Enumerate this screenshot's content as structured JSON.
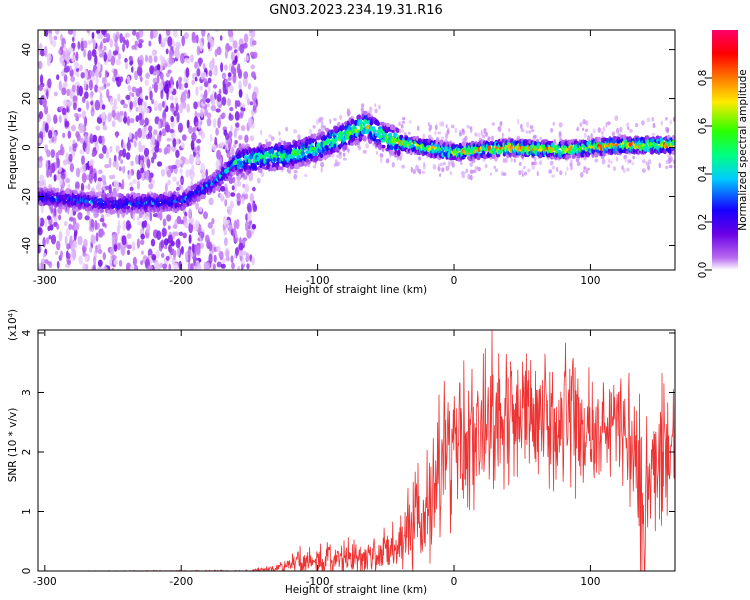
{
  "title": "GN03.2023.234.19.31.R16",
  "chart_data": [
    {
      "type": "heatmap",
      "xlabel": "Height of straight line (km)",
      "ylabel": "Frequency (Hz)",
      "xlim": [
        -305,
        162
      ],
      "ylim": [
        -50,
        48
      ],
      "x_ticks": [
        -300,
        -200,
        -100,
        0,
        100
      ],
      "y_ticks": [
        -40,
        -20,
        0,
        20,
        40
      ],
      "colorbar": {
        "label": "Normalized spectral amplitude",
        "range": [
          0,
          1
        ],
        "ticks": [
          "0.0",
          "0.2",
          "0.4",
          "0.6",
          "0.8"
        ],
        "tick_values": [
          0,
          0.2,
          0.4,
          0.6,
          0.8
        ],
        "colors": [
          "#ffffff",
          "#ba6cf0",
          "#6a00e6",
          "#1500ff",
          "#00ccff",
          "#00ff80",
          "#2bff00",
          "#ffea00",
          "#ff7a00",
          "#ff0000",
          "#ff006a"
        ]
      },
      "ridge": [
        {
          "x": -305,
          "freq": -20,
          "amp": 0.3
        },
        {
          "x": -250,
          "freq": -23,
          "amp": 0.32
        },
        {
          "x": -200,
          "freq": -22,
          "amp": 0.33
        },
        {
          "x": -175,
          "freq": -14,
          "amp": 0.35
        },
        {
          "x": -160,
          "freq": -6,
          "amp": 0.45
        },
        {
          "x": -140,
          "freq": -4,
          "amp": 0.55
        },
        {
          "x": -120,
          "freq": -3,
          "amp": 0.55
        },
        {
          "x": -100,
          "freq": 0,
          "amp": 0.55
        },
        {
          "x": -80,
          "freq": 5,
          "amp": 0.6
        },
        {
          "x": -65,
          "freq": 9,
          "amp": 0.65
        },
        {
          "x": -50,
          "freq": 4,
          "amp": 0.6
        },
        {
          "x": -40,
          "freq": 2,
          "amp": 0.65
        },
        {
          "x": 0,
          "freq": -2,
          "amp": 0.75
        },
        {
          "x": 40,
          "freq": 0,
          "amp": 0.85
        },
        {
          "x": 80,
          "freq": -1,
          "amp": 0.8
        },
        {
          "x": 120,
          "freq": 1,
          "amp": 0.82
        },
        {
          "x": 162,
          "freq": 1,
          "amp": 0.78
        }
      ]
    },
    {
      "type": "line",
      "xlabel": "Height of straight line (km)",
      "ylabel": "SNR (10 * v/v)",
      "y_scale_label": "(x10⁴)",
      "xlim": [
        -305,
        162
      ],
      "ylim": [
        0,
        4.05
      ],
      "x_ticks": [
        -300,
        -200,
        -100,
        0,
        100
      ],
      "y_ticks": [
        0,
        1,
        2,
        3,
        4
      ],
      "color": "#ee3333",
      "envelope": [
        {
          "x": -305,
          "mean": 0.0,
          "spread": 0.0
        },
        {
          "x": -150,
          "mean": 0.0,
          "spread": 0.02
        },
        {
          "x": -130,
          "mean": 0.05,
          "spread": 0.1
        },
        {
          "x": -115,
          "mean": 0.15,
          "spread": 0.3
        },
        {
          "x": -90,
          "mean": 0.2,
          "spread": 0.35
        },
        {
          "x": -60,
          "mean": 0.25,
          "spread": 0.4
        },
        {
          "x": -40,
          "mean": 0.4,
          "spread": 0.6
        },
        {
          "x": -20,
          "mean": 1.2,
          "spread": 1.4
        },
        {
          "x": 0,
          "mean": 2.0,
          "spread": 1.6
        },
        {
          "x": 25,
          "mean": 2.6,
          "spread": 1.5
        },
        {
          "x": 50,
          "mean": 2.6,
          "spread": 1.5
        },
        {
          "x": 90,
          "mean": 2.5,
          "spread": 1.4
        },
        {
          "x": 125,
          "mean": 2.4,
          "spread": 1.3
        },
        {
          "x": 140,
          "mean": 1.5,
          "spread": 1.5
        },
        {
          "x": 162,
          "mean": 2.3,
          "spread": 1.6
        }
      ],
      "peak": {
        "x": 28,
        "y": 4.05
      }
    }
  ]
}
